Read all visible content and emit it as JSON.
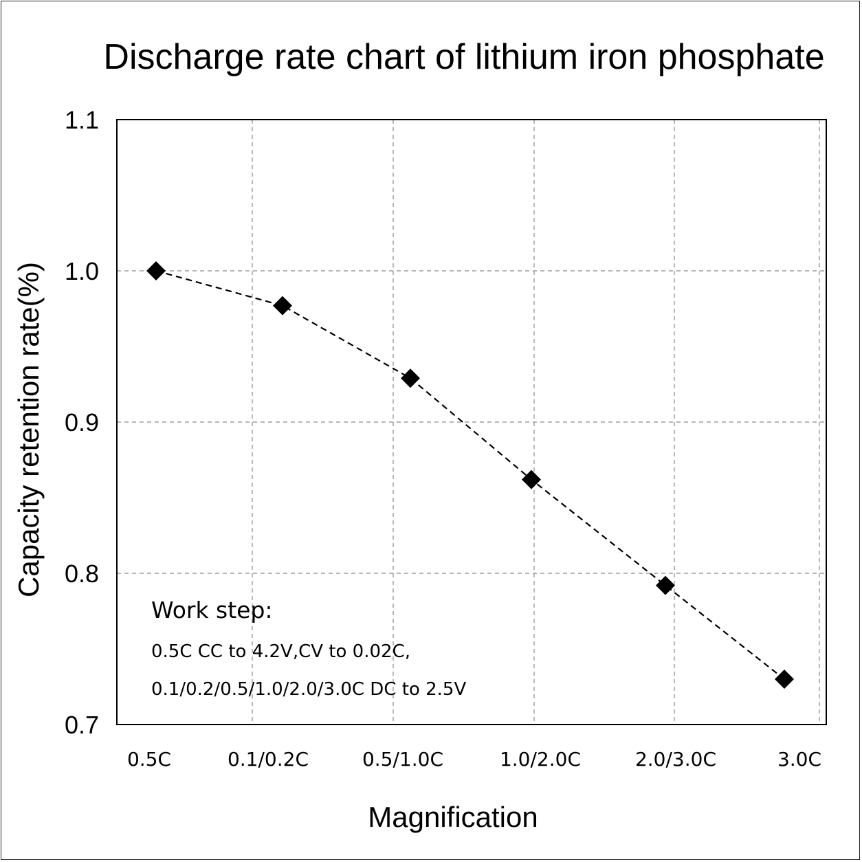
{
  "chart_data": {
    "type": "line",
    "title": "Discharge rate chart of lithium iron phosphate",
    "xlabel": "Magnification",
    "ylabel": "Capacity retention rate(%)",
    "categories": [
      "0.5C",
      "0.1/0.2C",
      "0.5/1.0C",
      "1.0/2.0C",
      "2.0/3.0C",
      "3.0C"
    ],
    "series": [
      {
        "values": [
          1.0,
          0.977,
          0.929,
          0.862,
          0.792,
          0.73
        ],
        "marker": "diamond",
        "line_style": "dashed",
        "color": "#000000"
      }
    ],
    "ylim": [
      0.7,
      1.1
    ],
    "yticks": [
      "0.7",
      "0.8",
      "0.9",
      "1.0",
      "1.1"
    ],
    "grid": true,
    "legend": "none",
    "annotation": {
      "heading": "Work step:",
      "lines": [
        "0.5C CC to 4.2V,CV to 0.02C,",
        "0.1/0.2/0.5/1.0/2.0/3.0C DC to 2.5V"
      ]
    }
  }
}
